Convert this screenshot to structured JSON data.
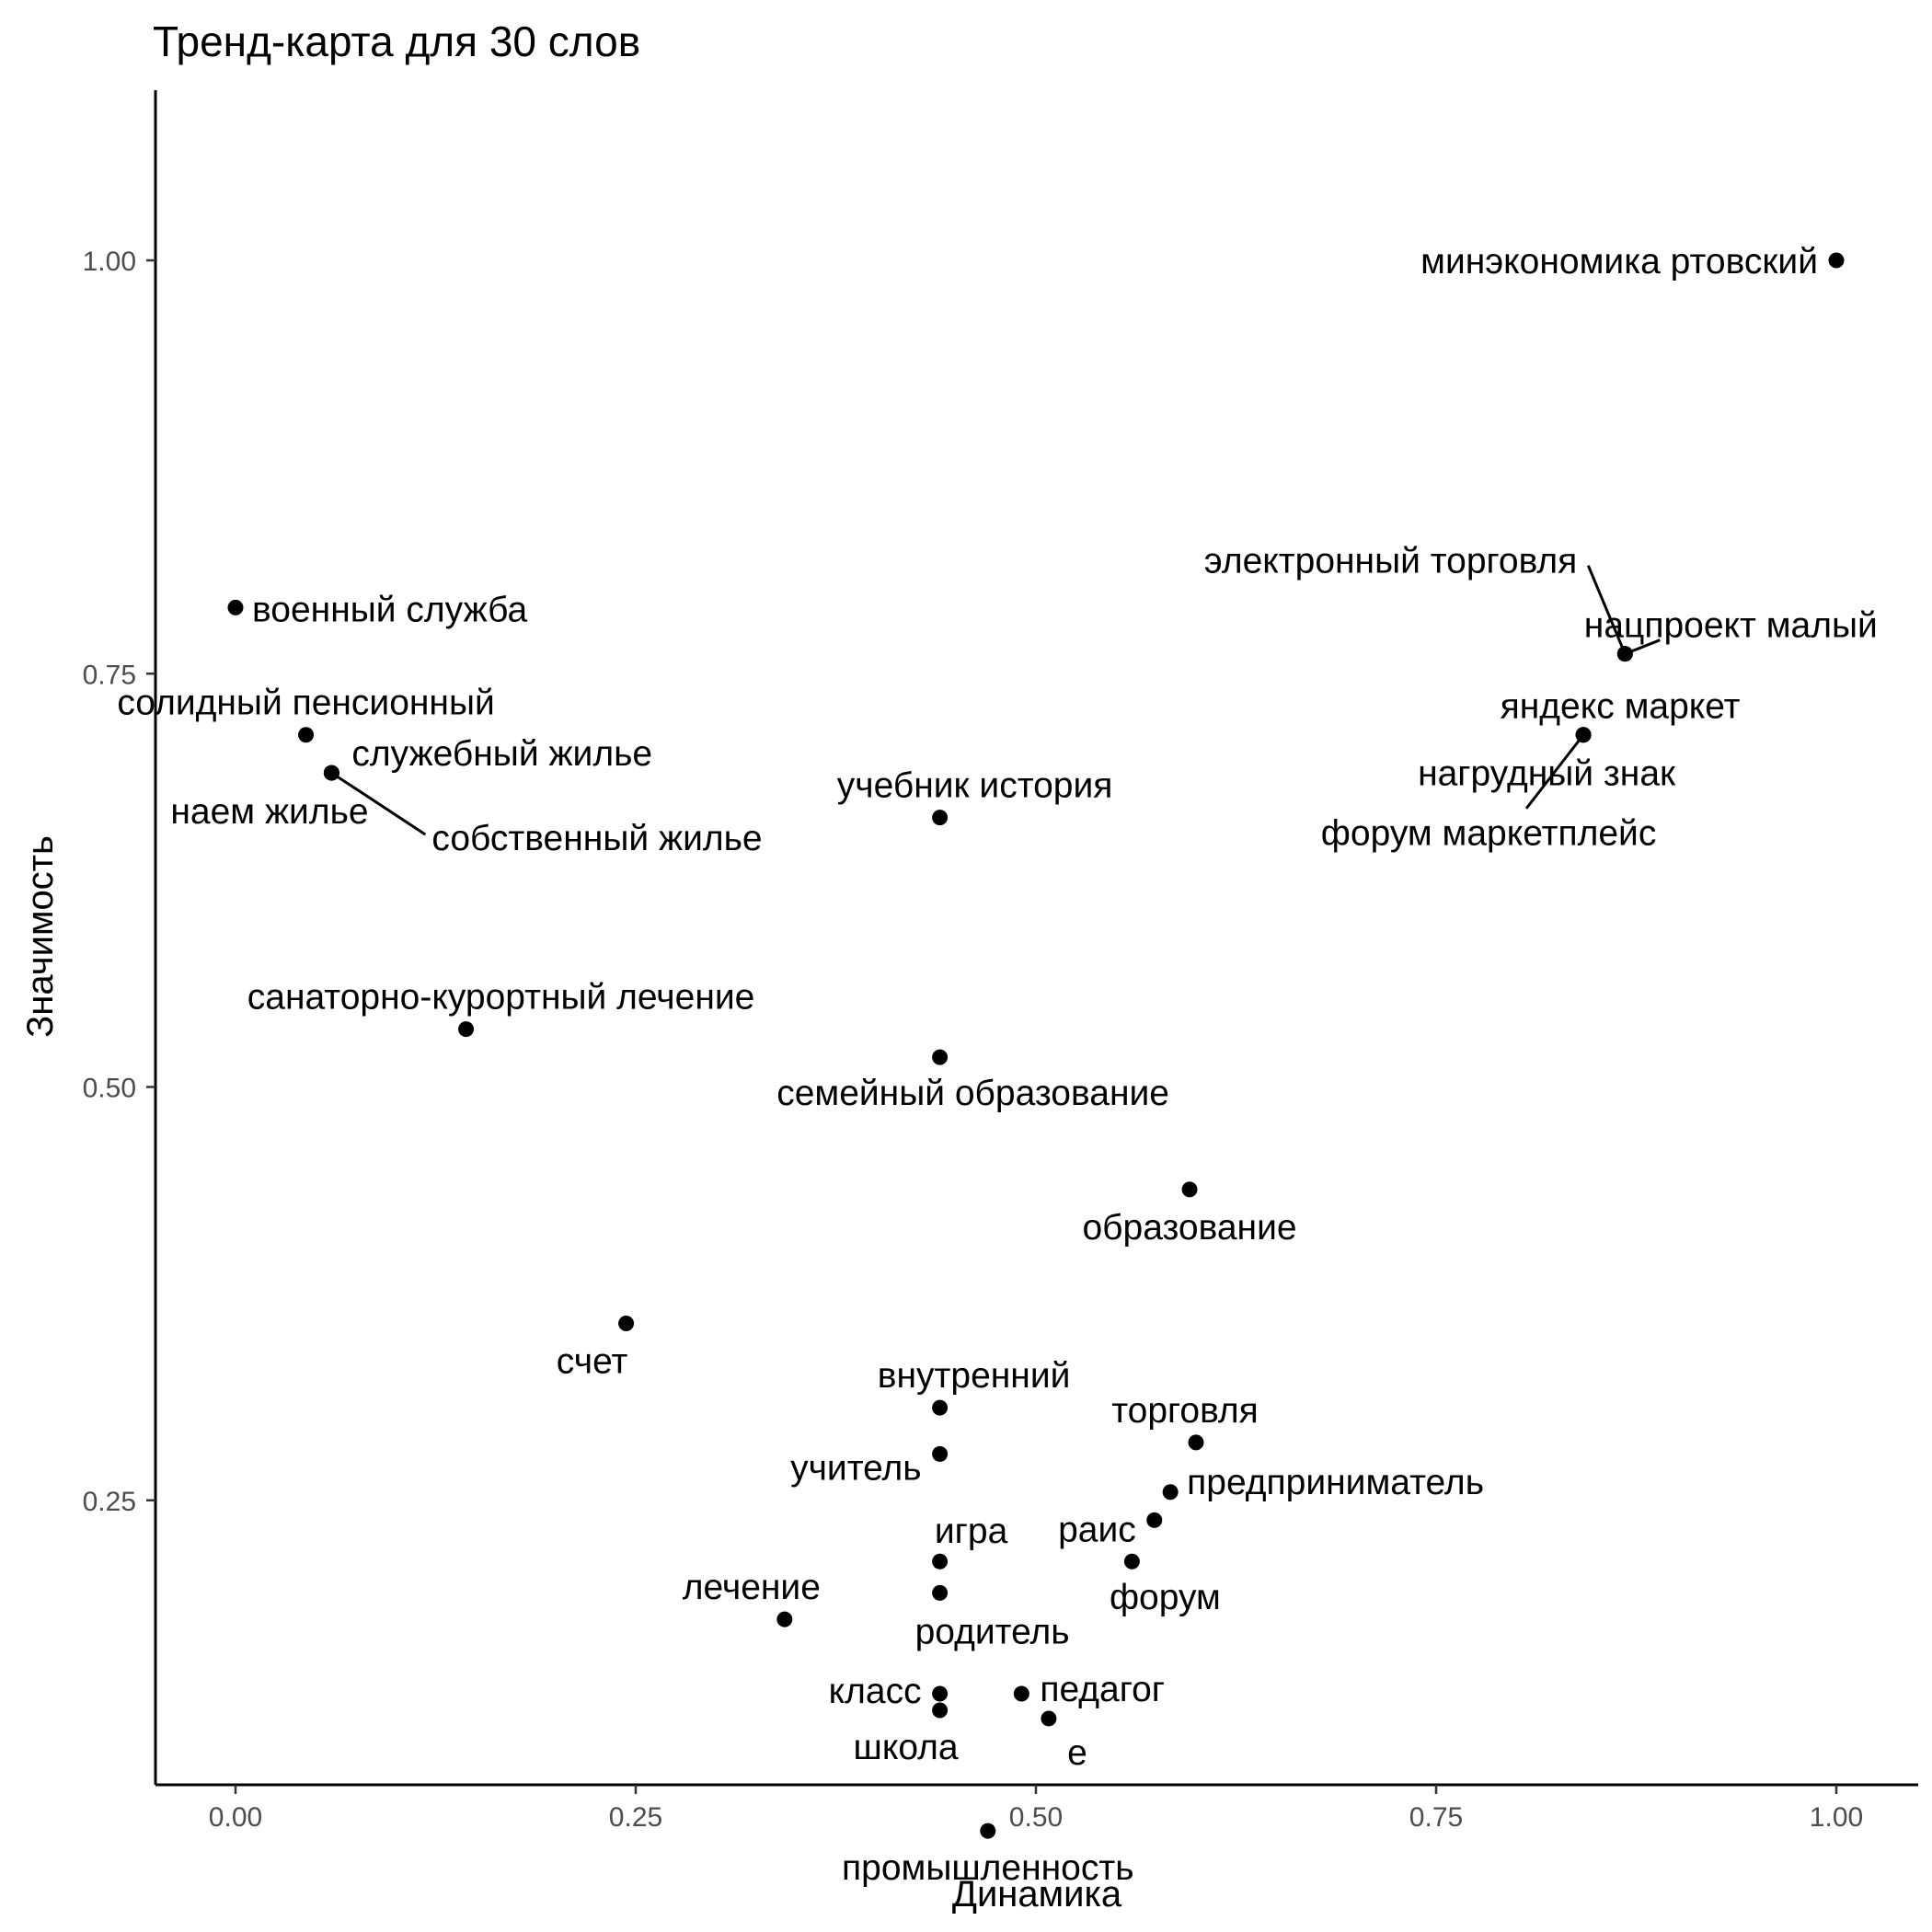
{
  "chart_data": {
    "type": "scatter",
    "title": "Тренд-карта для 30 слов",
    "xlabel": "Динамика",
    "ylabel": "Значимость",
    "xlim": [
      -0.05,
      1.05
    ],
    "ylim": [
      0.02,
      1.05
    ],
    "x_ticks": [
      0.0,
      0.25,
      0.5,
      0.75,
      1.0
    ],
    "x_tick_labels": [
      "0.00",
      "0.25",
      "0.50",
      "0.75",
      "1.00"
    ],
    "y_ticks": [
      0.25,
      0.5,
      0.75,
      1.0
    ],
    "y_tick_labels": [
      "0.25",
      "0.50",
      "0.75",
      "1.00"
    ],
    "grid": false,
    "points": [
      {
        "label": "минэкономика ртовский",
        "x": 1.0,
        "y": 1.0
      },
      {
        "label": "электронный торговля",
        "x": 0.868,
        "y": 0.762
      },
      {
        "label": "нацпроект малый",
        "x": 0.868,
        "y": 0.762
      },
      {
        "label": "яндекс маркет",
        "x": 0.842,
        "y": 0.713
      },
      {
        "label": "нагрудный знак",
        "x": 0.842,
        "y": 0.713
      },
      {
        "label": "форум маркетплейс",
        "x": 0.842,
        "y": 0.713
      },
      {
        "label": "военный служба",
        "x": 0.0,
        "y": 0.79
      },
      {
        "label": "солидный пенсионный",
        "x": 0.044,
        "y": 0.713
      },
      {
        "label": "служебный жилье",
        "x": 0.06,
        "y": 0.69
      },
      {
        "label": "наем жилье",
        "x": 0.06,
        "y": 0.69
      },
      {
        "label": "собственный жилье",
        "x": 0.06,
        "y": 0.69
      },
      {
        "label": "учебник история",
        "x": 0.44,
        "y": 0.663
      },
      {
        "label": "санаторно-курортный лечение",
        "x": 0.144,
        "y": 0.535
      },
      {
        "label": "семейный образование",
        "x": 0.44,
        "y": 0.518
      },
      {
        "label": "образование",
        "x": 0.596,
        "y": 0.438
      },
      {
        "label": "счет",
        "x": 0.244,
        "y": 0.357
      },
      {
        "label": "внутренний",
        "x": 0.44,
        "y": 0.306
      },
      {
        "label": "учитель",
        "x": 0.44,
        "y": 0.278
      },
      {
        "label": "торговля",
        "x": 0.6,
        "y": 0.285
      },
      {
        "label": "предприниматель",
        "x": 0.584,
        "y": 0.255
      },
      {
        "label": "раис",
        "x": 0.574,
        "y": 0.238
      },
      {
        "label": "игра",
        "x": 0.44,
        "y": 0.213
      },
      {
        "label": "форум",
        "x": 0.56,
        "y": 0.213
      },
      {
        "label": "родитель",
        "x": 0.44,
        "y": 0.194
      },
      {
        "label": "лечение",
        "x": 0.343,
        "y": 0.178
      },
      {
        "label": "класс",
        "x": 0.44,
        "y": 0.133
      },
      {
        "label": "педагог",
        "x": 0.491,
        "y": 0.133
      },
      {
        "label": "школа",
        "x": 0.44,
        "y": 0.123
      },
      {
        "label": "е",
        "x": 0.508,
        "y": 0.118
      },
      {
        "label": "промышленность",
        "x": 0.47,
        "y": 0.05
      }
    ]
  }
}
